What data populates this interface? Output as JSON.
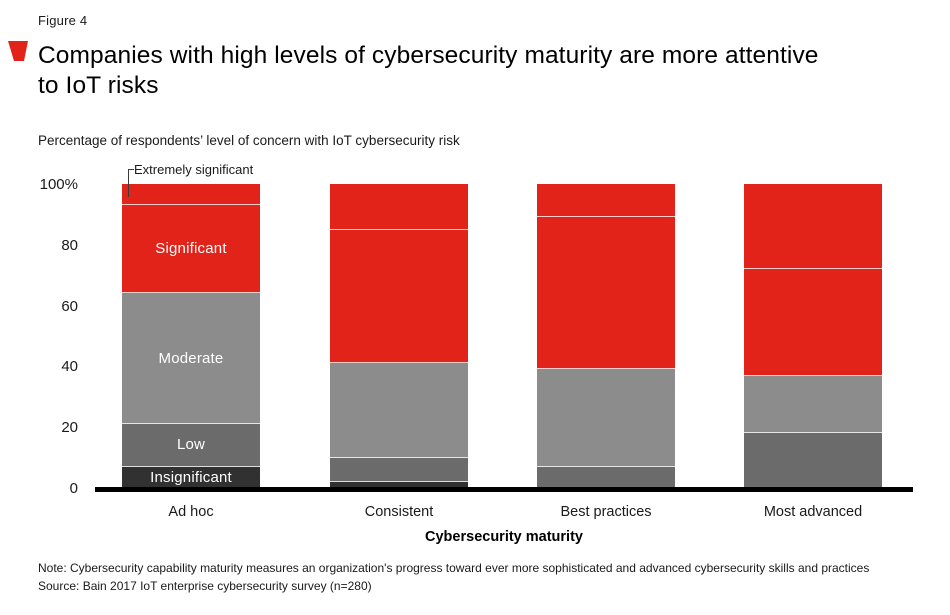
{
  "figure_label": "Figure 4",
  "header": {
    "title_line1": "Companies with high levels of cybersecurity maturity are more attentive",
    "title_line2": "to IoT risks",
    "accent_color": "#e2231a"
  },
  "subtitle": "Percentage of respondents’ level of concern with IoT cybersecurity risk",
  "notes": {
    "note_line": "Note: Cybersecurity capability maturity measures an organization's progress toward ever more sophisticated and advanced cybersecurity skills and practices",
    "source_line": "Source: Bain 2017 IoT enterprise cybersecurity survey (n=280)"
  },
  "chart_data": {
    "type": "bar",
    "stacked": true,
    "title": "Companies with high levels of cybersecurity maturity are more attentive to IoT risks",
    "subtitle": "Percentage of respondents’ level of concern with IoT cybersecurity risk",
    "xlabel": "Cybersecurity maturity",
    "ylabel": "Percentage of respondents",
    "ylim": [
      0,
      100
    ],
    "grid": false,
    "yticks": [
      "100%",
      "80",
      "60",
      "40",
      "20",
      "0"
    ],
    "categories": [
      "Ad hoc",
      "Consistent",
      "Best practices",
      "Most advanced"
    ],
    "series_note": "stack order bottom to top, values are percentages",
    "series": [
      {
        "name": "Insignificant",
        "color": "#313131",
        "values": [
          7,
          2,
          0,
          0
        ]
      },
      {
        "name": "Low",
        "color": "#6b6b6b",
        "values": [
          14,
          8,
          7,
          18
        ]
      },
      {
        "name": "Moderate",
        "color": "#8c8c8c",
        "values": [
          43,
          31,
          32,
          19
        ]
      },
      {
        "name": "Significant",
        "color": "#e2231a",
        "values": [
          29,
          44,
          50,
          35
        ]
      },
      {
        "name": "Extremely significant",
        "color": "#e2231a",
        "values": [
          7,
          15,
          11,
          28
        ]
      }
    ],
    "legend_position": "segment labels inside first bar; top segment labeled via callout"
  }
}
